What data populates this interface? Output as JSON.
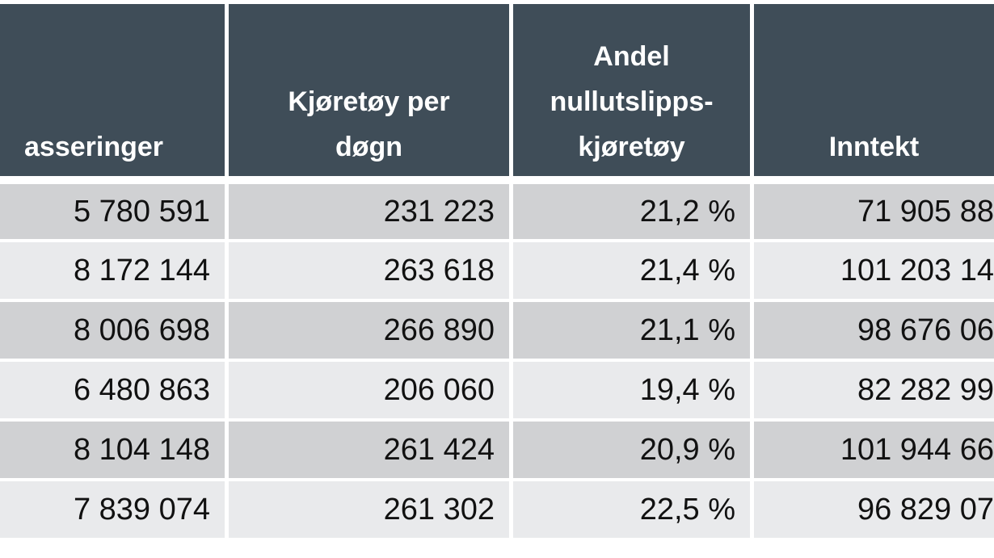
{
  "table": {
    "header": [
      [
        "asseringer"
      ],
      [
        "Kjøretøy per",
        "døgn"
      ],
      [
        "Andel",
        "nullutslipps-",
        "kjøretøy"
      ],
      [
        "Inntekt"
      ]
    ],
    "rows": [
      [
        "5 780 591",
        "231 223",
        "21,2 %",
        "71 905 88"
      ],
      [
        "8 172 144",
        "263 618",
        "21,4 %",
        "101 203 14"
      ],
      [
        "8 006 698",
        "266 890",
        "21,1 %",
        "98 676 06"
      ],
      [
        "6 480 863",
        "206 060",
        "19,4 %",
        "82 282 99"
      ],
      [
        "8 104 148",
        "261 424",
        "20,9 %",
        "101 944 66"
      ],
      [
        "7 839 074",
        "261 302",
        "22,5 %",
        "96 829 07"
      ]
    ]
  }
}
